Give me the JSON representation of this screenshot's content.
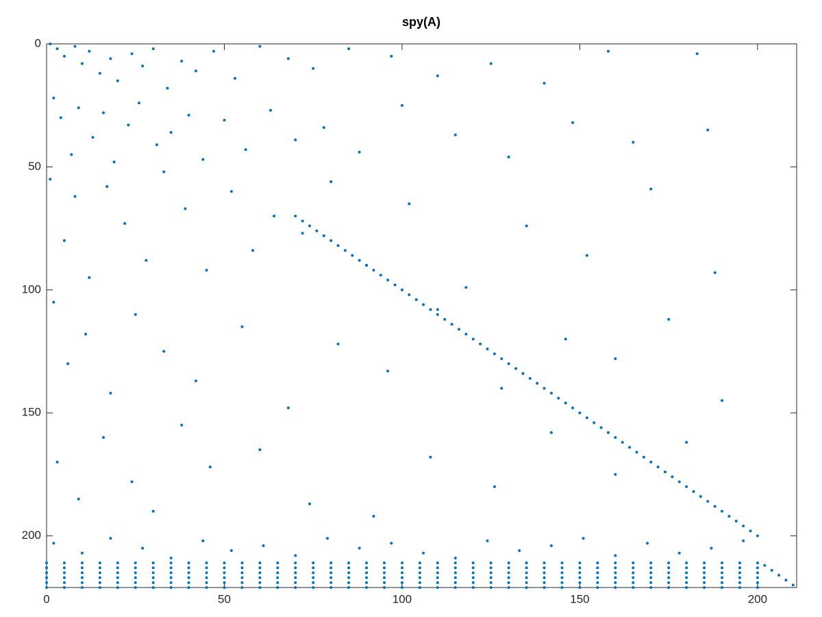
{
  "chart_data": {
    "type": "scatter",
    "title": "spy(A)",
    "xlim": [
      0,
      211
    ],
    "ylim": [
      0,
      221
    ],
    "y_reversed": true,
    "xticks": [
      0,
      50,
      100,
      150,
      200
    ],
    "yticks": [
      0,
      50,
      100,
      150,
      200
    ],
    "grid": false,
    "series": [
      {
        "color": "#0072bd",
        "x": [
          1,
          3,
          5,
          8,
          10,
          12,
          15,
          18,
          20,
          24,
          27,
          30,
          34,
          38,
          42,
          47,
          53,
          60,
          68,
          75,
          85,
          97,
          110,
          125,
          140,
          158,
          183
        ],
        "values": [
          0,
          2,
          5,
          1,
          8,
          3,
          12,
          6,
          15,
          4,
          9,
          2,
          18,
          7,
          11,
          3,
          14,
          1,
          6,
          10,
          2,
          5,
          13,
          8,
          16,
          3,
          4
        ]
      },
      {
        "color": "#0072bd",
        "x": [
          2,
          4,
          7,
          9,
          13,
          16,
          19,
          23,
          26,
          31,
          35,
          40,
          44,
          50,
          56,
          63,
          70,
          78,
          88,
          100,
          115,
          130,
          148,
          165,
          186
        ],
        "values": [
          22,
          30,
          45,
          26,
          38,
          28,
          48,
          33,
          24,
          41,
          36,
          29,
          47,
          31,
          43,
          27,
          39,
          34,
          44,
          25,
          37,
          46,
          32,
          40,
          35
        ]
      },
      {
        "color": "#0072bd",
        "x": [
          1,
          5,
          8,
          12,
          17,
          22,
          28,
          33,
          39,
          45,
          52,
          58,
          64,
          72,
          80,
          90,
          102,
          118,
          135,
          152,
          170,
          188
        ],
        "values": [
          55,
          80,
          62,
          95,
          58,
          73,
          88,
          52,
          67,
          92,
          60,
          84,
          70,
          77,
          56,
          90,
          65,
          99,
          74,
          86,
          59,
          93
        ]
      },
      {
        "color": "#0072bd",
        "x": [
          2,
          6,
          11,
          18,
          25,
          33,
          42,
          55,
          68,
          82,
          96,
          110,
          128,
          146,
          160,
          175,
          190
        ],
        "values": [
          105,
          130,
          118,
          142,
          110,
          125,
          137,
          115,
          148,
          122,
          133,
          108,
          140,
          120,
          128,
          112,
          145
        ]
      },
      {
        "color": "#0072bd",
        "x": [
          3,
          9,
          16,
          24,
          30,
          38,
          46,
          60,
          74,
          92,
          108,
          126,
          142,
          160,
          180
        ],
        "values": [
          170,
          185,
          160,
          178,
          190,
          155,
          172,
          165,
          187,
          192,
          168,
          180,
          158,
          175,
          162
        ]
      },
      {
        "color": "#0072bd",
        "x": [
          2,
          10,
          18,
          27,
          35,
          44,
          52,
          61,
          70,
          79,
          88,
          97,
          106,
          115,
          124,
          133,
          142,
          151,
          160,
          169,
          178,
          187,
          196
        ],
        "values": [
          203,
          207,
          201,
          205,
          209,
          202,
          206,
          204,
          208,
          201,
          205,
          203,
          207,
          209,
          202,
          206,
          204,
          201,
          208,
          203,
          207,
          205,
          202
        ]
      },
      {
        "color": "#0072bd",
        "x": [
          70,
          72,
          74,
          76,
          78,
          80,
          82,
          84,
          86,
          88,
          90,
          92,
          94,
          96,
          98,
          100,
          102,
          104,
          106,
          108,
          110,
          112,
          114,
          116,
          118,
          120,
          122,
          124,
          126,
          128,
          130,
          132,
          134,
          136,
          138,
          140,
          142,
          144,
          146,
          148,
          150,
          152,
          154,
          156,
          158,
          160,
          162,
          164,
          166,
          168,
          170,
          172,
          174,
          176,
          178,
          180,
          182,
          184,
          186,
          188,
          190,
          192,
          194,
          196,
          198,
          200,
          202,
          204,
          206,
          208,
          210
        ],
        "values": [
          70,
          72,
          74,
          76,
          78,
          80,
          82,
          84,
          86,
          88,
          90,
          92,
          94,
          96,
          98,
          100,
          102,
          104,
          106,
          108,
          110,
          112,
          114,
          116,
          118,
          120,
          122,
          124,
          126,
          128,
          130,
          132,
          134,
          136,
          138,
          140,
          142,
          144,
          146,
          148,
          150,
          152,
          154,
          156,
          158,
          160,
          162,
          164,
          166,
          168,
          170,
          172,
          174,
          176,
          178,
          180,
          182,
          184,
          186,
          188,
          190,
          192,
          194,
          196,
          198,
          200,
          212,
          214,
          216,
          218,
          220
        ]
      },
      {
        "color": "#0072bd",
        "x": [
          0,
          5,
          10,
          15,
          20,
          25,
          30,
          35,
          40,
          45,
          50,
          55,
          60,
          65,
          70,
          75,
          80,
          85,
          90,
          95,
          100,
          105,
          110,
          115,
          120,
          125,
          130,
          135,
          140,
          145,
          150,
          155,
          160,
          165,
          170,
          175,
          180,
          185,
          190,
          195,
          200
        ],
        "values": [
          211,
          211,
          211,
          211,
          211,
          211,
          211,
          211,
          211,
          211,
          211,
          211,
          211,
          211,
          211,
          211,
          211,
          211,
          211,
          211,
          211,
          211,
          211,
          211,
          211,
          211,
          211,
          211,
          211,
          211,
          211,
          211,
          211,
          211,
          211,
          211,
          211,
          211,
          211,
          211,
          211
        ]
      },
      {
        "color": "#0072bd",
        "x": [
          0,
          5,
          10,
          15,
          20,
          25,
          30,
          35,
          40,
          45,
          50,
          55,
          60,
          65,
          70,
          75,
          80,
          85,
          90,
          95,
          100,
          105,
          110,
          115,
          120,
          125,
          130,
          135,
          140,
          145,
          150,
          155,
          160,
          165,
          170,
          175,
          180,
          185,
          190,
          195,
          200
        ],
        "values": [
          213,
          213,
          213,
          213,
          213,
          213,
          213,
          213,
          213,
          213,
          213,
          213,
          213,
          213,
          213,
          213,
          213,
          213,
          213,
          213,
          213,
          213,
          213,
          213,
          213,
          213,
          213,
          213,
          213,
          213,
          213,
          213,
          213,
          213,
          213,
          213,
          213,
          213,
          213,
          213,
          213
        ]
      },
      {
        "color": "#0072bd",
        "x": [
          0,
          5,
          10,
          15,
          20,
          25,
          30,
          35,
          40,
          45,
          50,
          55,
          60,
          65,
          70,
          75,
          80,
          85,
          90,
          95,
          100,
          105,
          110,
          115,
          120,
          125,
          130,
          135,
          140,
          145,
          150,
          155,
          160,
          165,
          170,
          175,
          180,
          185,
          190,
          195,
          200
        ],
        "values": [
          215,
          215,
          215,
          215,
          215,
          215,
          215,
          215,
          215,
          215,
          215,
          215,
          215,
          215,
          215,
          215,
          215,
          215,
          215,
          215,
          215,
          215,
          215,
          215,
          215,
          215,
          215,
          215,
          215,
          215,
          215,
          215,
          215,
          215,
          215,
          215,
          215,
          215,
          215,
          215,
          215
        ]
      },
      {
        "color": "#0072bd",
        "x": [
          0,
          5,
          10,
          15,
          20,
          25,
          30,
          35,
          40,
          45,
          50,
          55,
          60,
          65,
          70,
          75,
          80,
          85,
          90,
          95,
          100,
          105,
          110,
          115,
          120,
          125,
          130,
          135,
          140,
          145,
          150,
          155,
          160,
          165,
          170,
          175,
          180,
          185,
          190,
          195,
          200
        ],
        "values": [
          217,
          217,
          217,
          217,
          217,
          217,
          217,
          217,
          217,
          217,
          217,
          217,
          217,
          217,
          217,
          217,
          217,
          217,
          217,
          217,
          217,
          217,
          217,
          217,
          217,
          217,
          217,
          217,
          217,
          217,
          217,
          217,
          217,
          217,
          217,
          217,
          217,
          217,
          217,
          217,
          217
        ]
      },
      {
        "color": "#0072bd",
        "x": [
          0,
          5,
          10,
          15,
          20,
          25,
          30,
          35,
          40,
          45,
          50,
          55,
          60,
          65,
          70,
          75,
          80,
          85,
          90,
          95,
          100,
          105,
          110,
          115,
          120,
          125,
          130,
          135,
          140,
          145,
          150,
          155,
          160,
          165,
          170,
          175,
          180,
          185,
          190,
          195,
          200
        ],
        "values": [
          219,
          219,
          219,
          219,
          219,
          219,
          219,
          219,
          219,
          219,
          219,
          219,
          219,
          219,
          219,
          219,
          219,
          219,
          219,
          219,
          219,
          219,
          219,
          219,
          219,
          219,
          219,
          219,
          219,
          219,
          219,
          219,
          219,
          219,
          219,
          219,
          219,
          219,
          219,
          219,
          219
        ]
      },
      {
        "color": "#0072bd",
        "x": [
          0,
          5,
          10,
          15,
          20,
          25,
          30,
          35,
          40,
          45,
          50,
          55,
          60,
          65,
          70,
          75,
          80,
          85,
          90,
          95,
          100,
          105,
          110,
          115,
          120,
          125,
          130,
          135,
          140,
          145,
          150,
          155,
          160,
          165,
          170,
          175,
          180,
          185,
          190,
          195,
          200
        ],
        "values": [
          221,
          221,
          221,
          221,
          221,
          221,
          221,
          221,
          221,
          221,
          221,
          221,
          221,
          221,
          221,
          221,
          221,
          221,
          221,
          221,
          221,
          221,
          221,
          221,
          221,
          221,
          221,
          221,
          221,
          221,
          221,
          221,
          221,
          221,
          221,
          221,
          221,
          221,
          221,
          221,
          221
        ]
      }
    ]
  }
}
